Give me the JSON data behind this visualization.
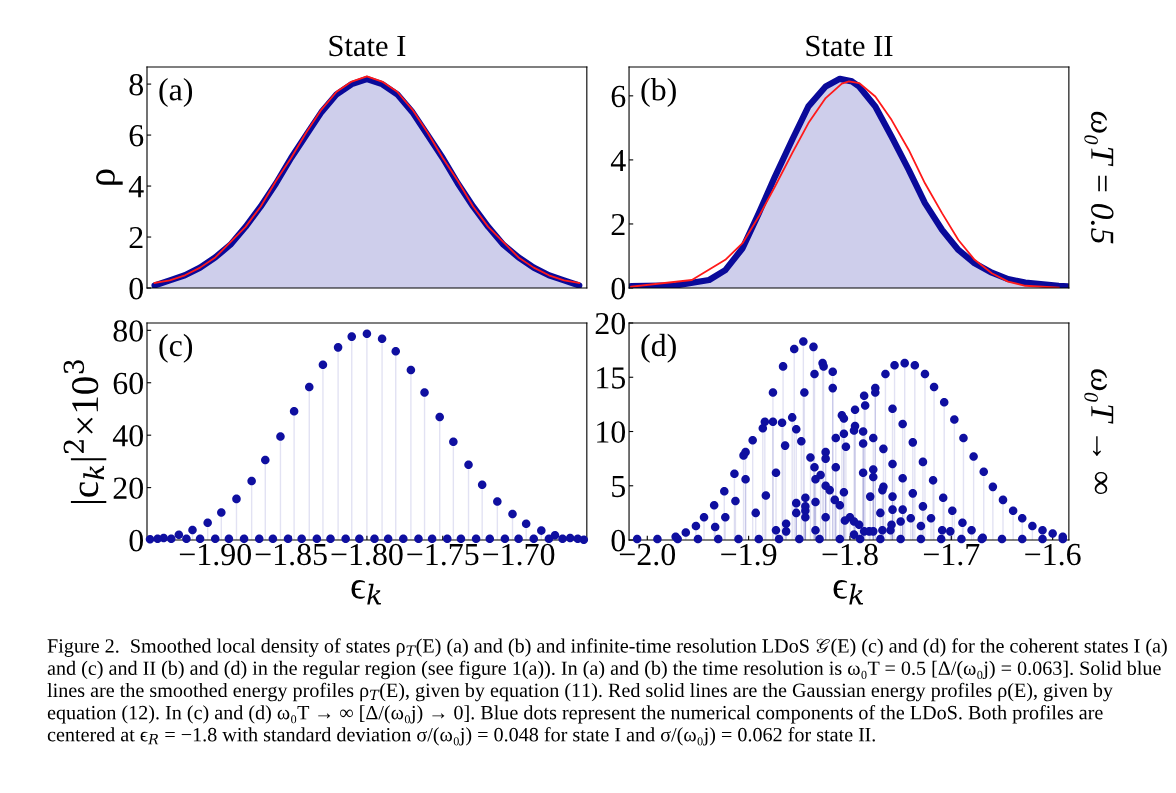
{
  "chart_data": [
    {
      "type": "area",
      "title": "State I",
      "ylabel": "ρ",
      "annotations": [
        "(a)"
      ],
      "xlim": [
        -1.945,
        -1.655
      ],
      "ylim": [
        0,
        8.67
      ],
      "yticks": [
        0,
        2,
        4,
        6,
        8
      ],
      "tick_labels": "y",
      "x": [
        -1.94,
        -1.93,
        -1.92,
        -1.91,
        -1.9,
        -1.89,
        -1.88,
        -1.87,
        -1.86,
        -1.85,
        -1.84,
        -1.83,
        -1.82,
        -1.81,
        -1.8,
        -1.79,
        -1.78,
        -1.77,
        -1.76,
        -1.75,
        -1.74,
        -1.73,
        -1.72,
        -1.71,
        -1.7,
        -1.69,
        -1.68,
        -1.67,
        -1.66
      ],
      "series": [
        {
          "type": "area",
          "color": "#0a0a9a",
          "values": [
            0.1,
            0.3,
            0.5,
            0.8,
            1.2,
            1.7,
            2.4,
            3.2,
            4.1,
            5.1,
            6.0,
            6.9,
            7.6,
            8.0,
            8.2,
            8.0,
            7.6,
            6.9,
            6.0,
            5.1,
            4.1,
            3.2,
            2.4,
            1.7,
            1.2,
            0.8,
            0.5,
            0.3,
            0.1
          ]
        },
        {
          "type": "line",
          "color": "#ff1a1a",
          "values": [
            0.2,
            0.3,
            0.5,
            0.8,
            1.2,
            1.8,
            2.4,
            3.2,
            4.2,
            5.1,
            6.1,
            7.0,
            7.7,
            8.1,
            8.3,
            8.1,
            7.7,
            7.0,
            6.1,
            5.1,
            4.2,
            3.2,
            2.4,
            1.8,
            1.2,
            0.8,
            0.5,
            0.3,
            0.2
          ]
        }
      ]
    },
    {
      "type": "area",
      "title": "State II",
      "y2label": "ω₀T = 0.5",
      "annotations": [
        "(b)"
      ],
      "xlim": [
        -2.018,
        -1.584
      ],
      "ylim": [
        0,
        6.9
      ],
      "yticks": [
        0,
        2,
        4,
        6
      ],
      "tick_labels": "y",
      "series": [
        {
          "type": "area",
          "color": "#0a0a9a",
          "x": [
            -2.016,
            -1.972,
            -1.939,
            -1.923,
            -1.906,
            -1.89,
            -1.874,
            -1.857,
            -1.841,
            -1.824,
            -1.81,
            -1.798,
            -1.791,
            -1.775,
            -1.759,
            -1.742,
            -1.726,
            -1.709,
            -1.693,
            -1.677,
            -1.66,
            -1.644,
            -1.627,
            -1.594,
            -1.585
          ],
          "values": [
            0.06,
            0.08,
            0.25,
            0.56,
            1.24,
            2.33,
            3.48,
            4.63,
            5.67,
            6.29,
            6.53,
            6.45,
            6.29,
            5.67,
            4.73,
            3.69,
            2.65,
            1.81,
            1.19,
            0.77,
            0.48,
            0.28,
            0.17,
            0.07,
            0.05
          ]
        },
        {
          "type": "line",
          "color": "#ff1a1a",
          "x": [
            -2.016,
            -1.956,
            -1.923,
            -1.906,
            -1.89,
            -1.874,
            -1.857,
            -1.841,
            -1.824,
            -1.808,
            -1.801,
            -1.791,
            -1.775,
            -1.759,
            -1.742,
            -1.726,
            -1.709,
            -1.693,
            -1.677,
            -1.66,
            -1.644,
            -1.627,
            -1.594
          ],
          "values": [
            0.04,
            0.25,
            0.88,
            1.4,
            2.23,
            3.17,
            4.21,
            5.15,
            5.93,
            6.38,
            6.45,
            6.4,
            5.98,
            5.25,
            4.31,
            3.27,
            2.33,
            1.5,
            0.88,
            0.46,
            0.2,
            0.07,
            0.01
          ]
        }
      ]
    },
    {
      "type": "lollipop",
      "xlabel": "ϵ$_{k}$",
      "ylabel": "|c$_{k}$|$^{2}$×10$^{3}$",
      "annotations": [
        "(c)"
      ],
      "marker": "circle",
      "xlim": [
        -1.945,
        -1.655
      ],
      "ylim": [
        0,
        82.8
      ],
      "yticks": [
        0,
        20,
        40,
        60,
        80
      ],
      "xticks": [
        {
          "value": -1.9,
          "label": "−1.90"
        },
        {
          "value": -1.85,
          "label": "−1.85"
        },
        {
          "value": -1.8,
          "label": "−1.80"
        },
        {
          "value": -1.75,
          "label": "−1.75"
        },
        {
          "value": -1.7,
          "label": "−1.70"
        }
      ],
      "series": [
        {
          "color": "#0f0fa0",
          "x": [
            -1.943,
            -1.934,
            -1.924,
            -1.915,
            -1.905,
            -1.896,
            -1.886,
            -1.876,
            -1.867,
            -1.857,
            -1.848,
            -1.838,
            -1.829,
            -1.819,
            -1.81,
            -1.8,
            -1.79,
            -1.781,
            -1.771,
            -1.762,
            -1.752,
            -1.743,
            -1.733,
            -1.724,
            -1.714,
            -1.704,
            -1.695,
            -1.685,
            -1.676,
            -1.666,
            -1.657
          ],
          "values": [
            0.3,
            0.8,
            2.0,
            3.8,
            6.6,
            10.5,
            15.7,
            22.5,
            30.5,
            39.5,
            49.1,
            58.4,
            66.9,
            73.5,
            77.6,
            78.7,
            76.8,
            72.0,
            64.9,
            56.3,
            46.9,
            37.5,
            28.7,
            21.1,
            14.7,
            9.9,
            6.2,
            3.6,
            1.8,
            0.8,
            0.1
          ]
        },
        {
          "color": "#0f0fa0",
          "x": [
            -1.938,
            -1.929,
            -1.919,
            -1.91,
            -1.9,
            -1.891,
            -1.881,
            -1.871,
            -1.862,
            -1.852,
            -1.843,
            -1.833,
            -1.824,
            -1.814,
            -1.805,
            -1.795,
            -1.786,
            -1.776,
            -1.766,
            -1.757,
            -1.747,
            -1.738,
            -1.728,
            -1.719,
            -1.709,
            -1.7,
            -1.69,
            -1.68,
            -1.671,
            -1.661
          ],
          "values": [
            0.5,
            0.5,
            0.5,
            0.5,
            0.5,
            0.5,
            0.5,
            0.5,
            0.5,
            0.5,
            0.5,
            0.5,
            0.5,
            0.5,
            0.5,
            0.5,
            0.5,
            0.5,
            0.5,
            0.5,
            0.5,
            0.5,
            0.5,
            0.5,
            0.5,
            0.5,
            0.5,
            0.5,
            0.5,
            0.5
          ]
        }
      ]
    },
    {
      "type": "lollipop",
      "xlabel": "ϵ$_{k}$",
      "y2label": "ω₀T → ∞",
      "marker": "circle",
      "xlim": [
        -2.018,
        -1.584
      ],
      "ylim": [
        0,
        20
      ],
      "yticks": [
        0,
        5,
        10,
        15,
        20
      ],
      "xticks": [
        {
          "value": -2.0,
          "label": "−2.0"
        },
        {
          "value": -1.9,
          "label": "−1.9"
        },
        {
          "value": -1.8,
          "label": "−1.8"
        },
        {
          "value": -1.7,
          "label": "−1.7"
        },
        {
          "value": -1.6,
          "label": "−1.6"
        }
      ],
      "annotations": [
        "(d)",
        "Figure 2.  Smoothed local density of states ρ$_{T}$(E) (a) and (b) and infinite-time resolution LDoS 𝒢(E) (c) and (d) for the coherent states I (a) and (c) and II (b) and (d) in the regular region (see figure 1(a)). In (a) and (b) the time resolution is ω₀T = 0.5 [Δ/(ω₀j) = 0.063]. Solid blue lines are the smoothed energy profiles ρ$_{T}$(E), given by equation (11). Red solid lines are the Gaussian energy profiles ρ(E), given by equation (12). In (c) and (d) ω₀T → ∞ [Δ/(ω₀j) → 0]. Blue dots represent the numerical components of the LDoS. Both profiles are centered at ϵ$_{R}$ = −1.8 with standard deviation σ/(ω₀j) = 0.048 for state I and σ/(ω₀j) = 0.062 for state II."
      ],
      "series": [
        {
          "color": "#0f0fa0",
          "x": [
            -1.972,
            -1.962,
            -1.952,
            -1.944,
            -1.934,
            -1.924,
            -1.914,
            -1.905,
            -1.896,
            -1.886,
            -1.884,
            -1.876,
            -1.876,
            -1.866,
            -1.855,
            -1.846,
            -1.836,
            -1.827,
            -1.826,
            -1.817,
            -1.817,
            -1.933,
            -1.923,
            -1.913,
            -1.903,
            -1.903,
            -1.893,
            -1.883,
            -1.873,
            -1.864,
            -1.853,
            -1.857,
            -1.867,
            -1.845,
            -1.835,
            -1.848,
            -1.839,
            -1.835,
            -1.829,
            -1.824,
            -1.824,
            -1.824,
            -1.82,
            -1.815,
            -1.81,
            -1.814,
            -1.814,
            -1.8,
            -1.796,
            -1.791,
            -1.59,
            -1.6,
            -1.61,
            -1.62,
            -1.63,
            -1.639,
            -1.649,
            -1.659,
            -1.668,
            -1.678,
            -1.688,
            -1.697,
            -1.707,
            -1.717,
            -1.726,
            -1.736,
            -1.746,
            -1.756,
            -1.765,
            -1.775,
            -1.785,
            -1.795,
            -1.804,
            -1.806,
            -1.775,
            -1.786,
            -1.795,
            -1.808,
            -1.806,
            -1.796,
            -1.787,
            -1.787,
            -1.787,
            -1.777,
            -1.777,
            -1.777,
            -1.78,
            -1.767,
            -1.767,
            -1.768,
            -1.77,
            -1.758,
            -1.758,
            -1.758,
            -1.758,
            -1.748,
            -1.748,
            -1.748,
            -1.75,
            -1.738,
            -1.738,
            -1.74,
            -1.728,
            -1.728,
            -1.73,
            -1.718,
            -1.72,
            -1.708,
            -1.709,
            -1.699,
            -1.701,
            -1.689,
            -1.68,
            -1.669,
            -1.873,
            -1.863,
            -1.863,
            -1.853,
            -1.853,
            -1.844,
            -1.844,
            -1.844,
            -1.844,
            -1.834,
            -1.834,
            -1.834,
            -1.824,
            -1.805,
            -1.806,
            -1.796,
            -1.786,
            -1.781,
            -1.777,
            -1.768,
            -1.76,
            -1.759
          ],
          "values": [
            0.3,
            0.7,
            1.3,
            2.1,
            3.2,
            4.5,
            6.1,
            7.8,
            9.2,
            10.3,
            10.9,
            10.9,
            13.6,
            16.0,
            17.6,
            18.3,
            17.8,
            16.3,
            16.0,
            15.5,
            14.0,
            1.2,
            2.1,
            3.6,
            5.6,
            8.1,
            2.5,
            4.1,
            6.2,
            8.7,
            10.2,
            11.3,
            10.8,
            13.6,
            15.3,
            9.1,
            7.6,
            6.7,
            6.0,
            8.1,
            7.5,
            5.0,
            4.6,
            3.7,
            3.2,
            6.7,
            9.4,
            2.1,
            1.7,
            1.4,
            0.3,
            0.6,
            0.9,
            1.3,
            2.0,
            2.7,
            3.7,
            4.9,
            6.3,
            7.7,
            9.4,
            11.1,
            12.7,
            14.1,
            15.3,
            16.1,
            16.3,
            16.1,
            15.3,
            14.0,
            12.4,
            10.5,
            8.6,
            9.8,
            13.6,
            13.3,
            12.0,
            11.5,
            11.2,
            10.1,
            10.0,
            8.9,
            6.2,
            9.4,
            6.5,
            5.8,
            4.0,
            8.4,
            4.9,
            4.6,
            2.5,
            12.1,
            7.0,
            4.0,
            2.8,
            10.7,
            5.7,
            2.8,
            1.7,
            9.0,
            4.3,
            2.0,
            7.2,
            3.1,
            1.3,
            5.5,
            2.0,
            3.9,
            0.9,
            2.7,
            0.8,
            1.6,
            0.9,
            0.2,
            0.9,
            1.5,
            0.8,
            2.5,
            3.4,
            2.7,
            3.9,
            3.1,
            2.1,
            0.9,
            3.5,
            5.6,
            2.1,
            1.8,
            4.4,
            0.5,
            0.8,
            0.8,
            0.8,
            0.9,
            0.9,
            1.4
          ]
        },
        {
          "color": "#0f0fa0",
          "x": [
            -2.01,
            -1.99,
            -1.97,
            -1.95,
            -1.93,
            -1.91,
            -1.89,
            -1.87,
            -1.85,
            -1.83,
            -1.81,
            -1.79,
            -1.77,
            -1.75,
            -1.73,
            -1.71,
            -1.69,
            -1.67,
            -1.65,
            -1.63,
            -1.61,
            -1.59
          ],
          "values": [
            0.1,
            0.1,
            0.1,
            0.1,
            0.1,
            0.1,
            0.1,
            0.1,
            0.1,
            0.1,
            0.1,
            0.1,
            0.1,
            0.1,
            0.1,
            0.1,
            0.1,
            0.1,
            0.1,
            0.1,
            0.1,
            0.1
          ]
        }
      ]
    }
  ]
}
